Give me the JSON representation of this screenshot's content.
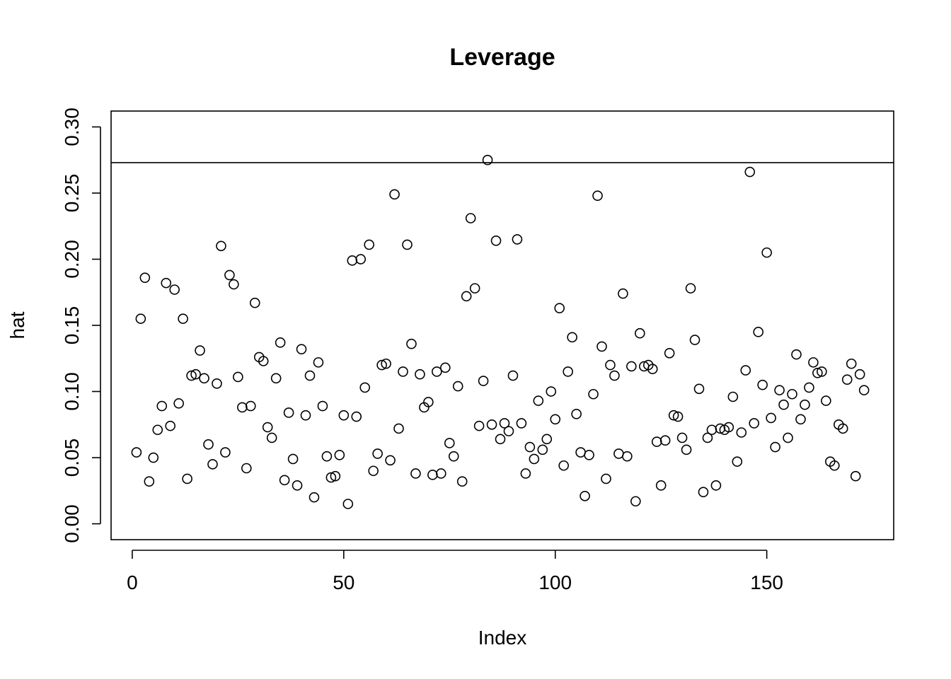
{
  "chart_data": {
    "type": "scatter",
    "title": "Leverage",
    "xlabel": "Index",
    "ylabel": "hat",
    "xlim": [
      -5,
      180
    ],
    "ylim": [
      -0.012,
      0.312
    ],
    "xticks": [
      0,
      50,
      100,
      150
    ],
    "xtick_labels": [
      "0",
      "50",
      "100",
      "150"
    ],
    "yticks": [
      0.0,
      0.05,
      0.1,
      0.15,
      0.2,
      0.25,
      0.3
    ],
    "ytick_labels": [
      "0.00",
      "0.05",
      "0.10",
      "0.15",
      "0.20",
      "0.25",
      "0.30"
    ],
    "grid": false,
    "hline": 0.273,
    "marker": "open-circle",
    "y": [
      0.054,
      0.155,
      0.186,
      0.032,
      0.05,
      0.071,
      0.089,
      0.182,
      0.074,
      0.177,
      0.091,
      0.155,
      0.034,
      0.112,
      0.113,
      0.131,
      0.11,
      0.06,
      0.045,
      0.106,
      0.21,
      0.054,
      0.188,
      0.181,
      0.111,
      0.088,
      0.042,
      0.089,
      0.167,
      0.126,
      0.123,
      0.073,
      0.065,
      0.11,
      0.137,
      0.033,
      0.084,
      0.049,
      0.029,
      0.132,
      0.082,
      0.112,
      0.02,
      0.122,
      0.089,
      0.051,
      0.035,
      0.036,
      0.052,
      0.082,
      0.015,
      0.199,
      0.081,
      0.2,
      0.103,
      0.211,
      0.04,
      0.053,
      0.12,
      0.121,
      0.048,
      0.249,
      0.072,
      0.115,
      0.211,
      0.136,
      0.038,
      0.113,
      0.088,
      0.092,
      0.037,
      0.115,
      0.038,
      0.118,
      0.061,
      0.051,
      0.104,
      0.032,
      0.172,
      0.231,
      0.178,
      0.074,
      0.108,
      0.275,
      0.075,
      0.214,
      0.064,
      0.076,
      0.07,
      0.112,
      0.215,
      0.076,
      0.038,
      0.058,
      0.049,
      0.093,
      0.056,
      0.064,
      0.1,
      0.079,
      0.163,
      0.044,
      0.115,
      0.141,
      0.083,
      0.054,
      0.021,
      0.052,
      0.098,
      0.248,
      0.134,
      0.034,
      0.12,
      0.112,
      0.053,
      0.174,
      0.051,
      0.119,
      0.017,
      0.144,
      0.119,
      0.12,
      0.117,
      0.062,
      0.029,
      0.063,
      0.129,
      0.082,
      0.081,
      0.065,
      0.056,
      0.178,
      0.139,
      0.102,
      0.024,
      0.065,
      0.071,
      0.029,
      0.072,
      0.071,
      0.073,
      0.096,
      0.047,
      0.069,
      0.116,
      0.266,
      0.076,
      0.145,
      0.105,
      0.205,
      0.08,
      0.058,
      0.101,
      0.09,
      0.065,
      0.098,
      0.128,
      0.079,
      0.09,
      0.103,
      0.122,
      0.114,
      0.115,
      0.093,
      0.047,
      0.044,
      0.075,
      0.072,
      0.109,
      0.121,
      0.036,
      0.113,
      0.101
    ]
  }
}
